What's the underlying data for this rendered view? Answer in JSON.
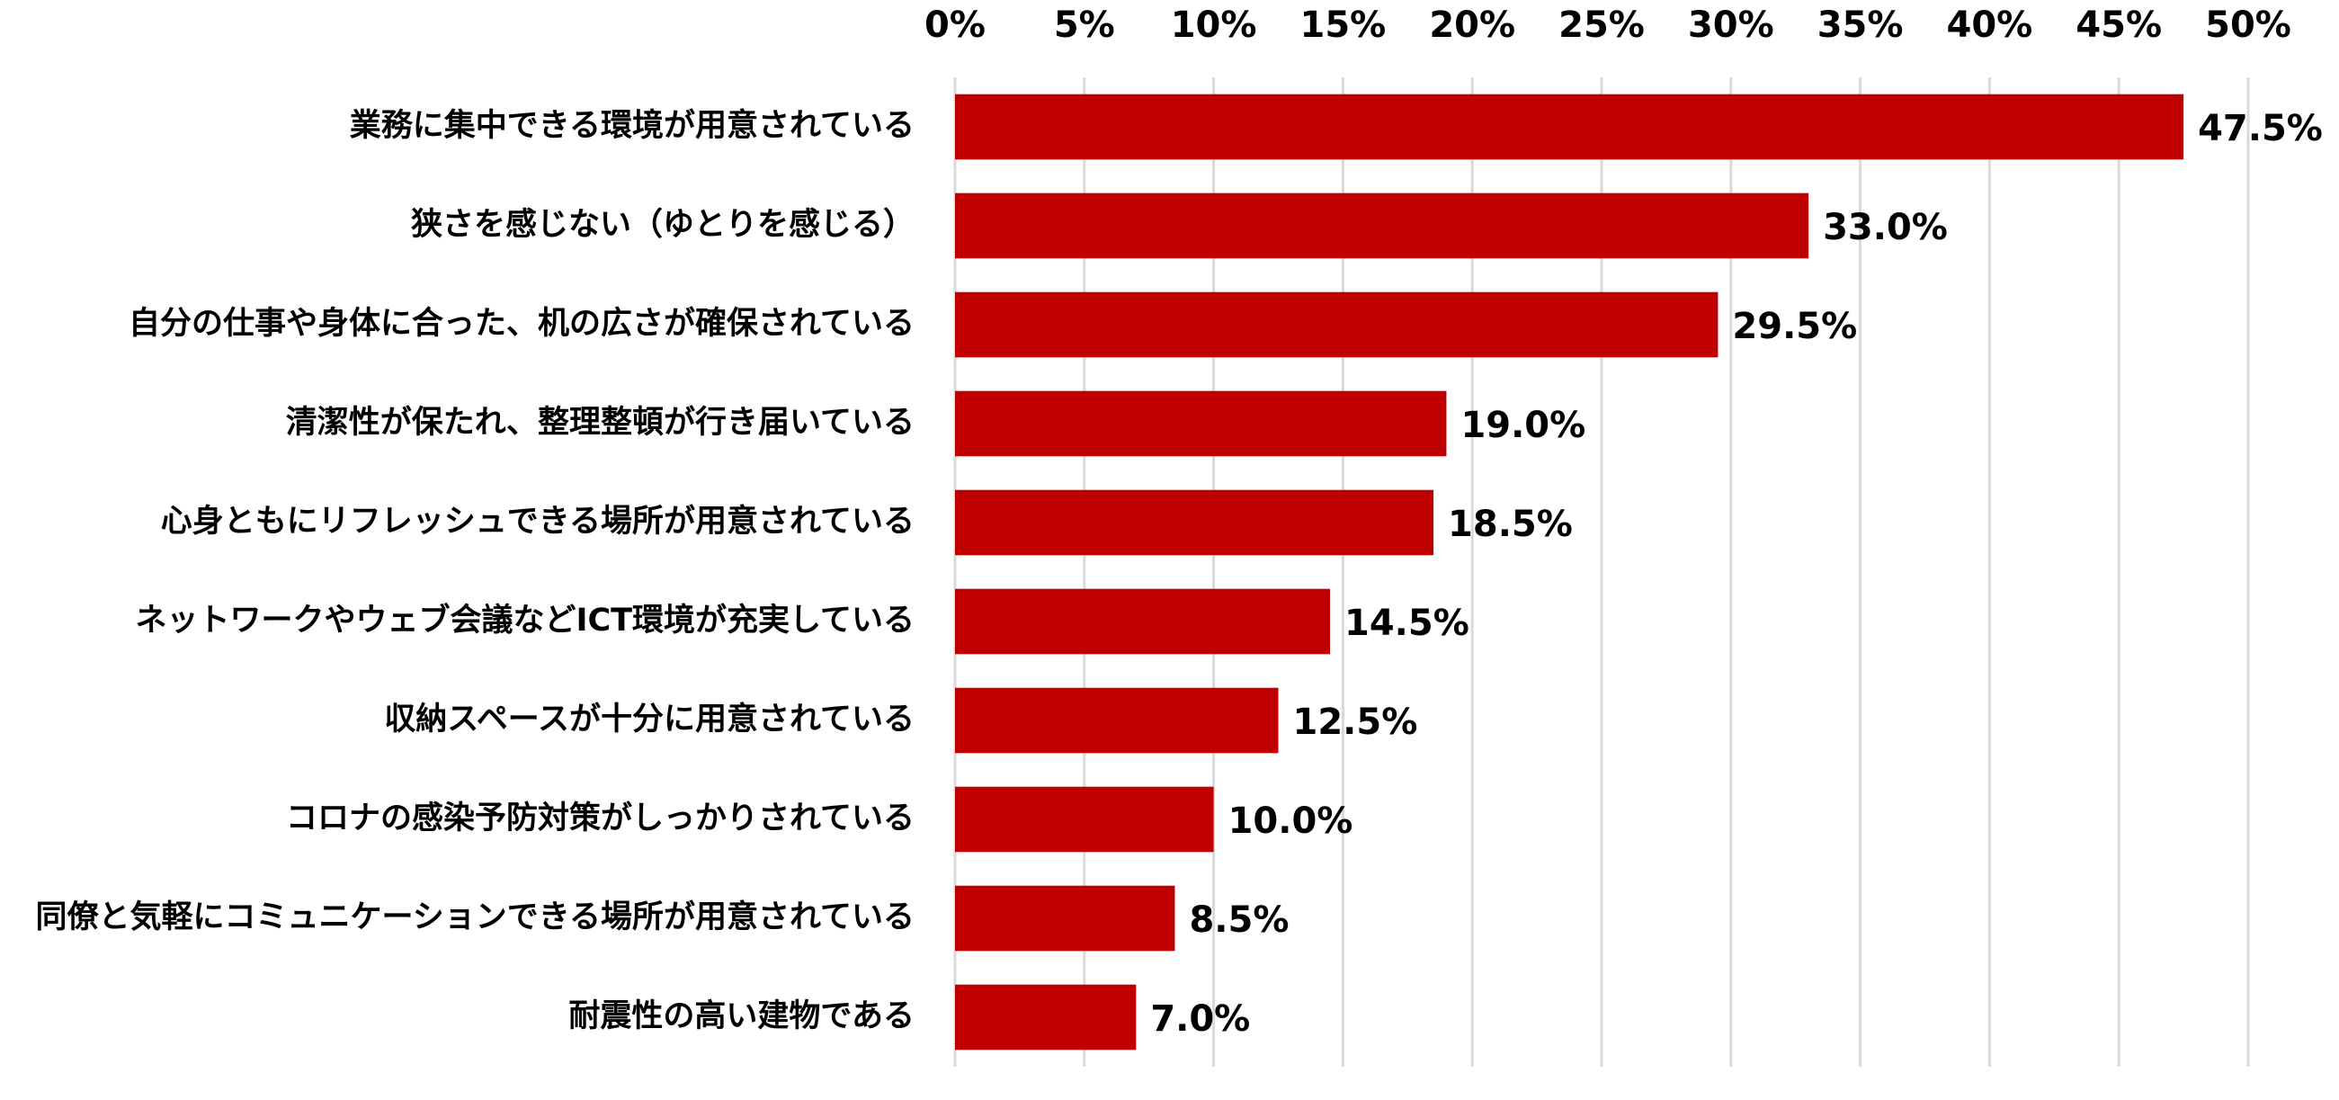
{
  "chart_data": {
    "type": "barh",
    "categories": [
      "業務に集中できる環境が用意されている",
      "狭さを感じない（ゆとりを感じる）",
      "自分の仕事や身体に合った、机の広さが確保されている",
      "清潔性が保たれ、整理整頓が行き届いている",
      "心身ともにリフレッシュできる場所が用意されている",
      "ネットワークやウェブ会議などICT環境が充実している",
      "収納スペースが十分に用意されている",
      "コロナの感染予防対策がしっかりされている",
      "同僚と気軽にコミュニケーションできる場所が用意されている",
      "耐震性の高い建物である"
    ],
    "values": [
      47.5,
      33.0,
      29.5,
      19.0,
      18.5,
      14.5,
      12.5,
      10.0,
      8.5,
      7.0
    ],
    "value_labels": [
      "47.5%",
      "33.0%",
      "29.5%",
      "19.0%",
      "18.5%",
      "14.5%",
      "12.5%",
      "10.0%",
      "8.5%",
      "7.0%"
    ],
    "color": "#c00000",
    "xlim": [
      0,
      50
    ],
    "xticks": [
      {
        "value": 0,
        "label": "0%"
      },
      {
        "value": 5,
        "label": "5%"
      },
      {
        "value": 10,
        "label": "10%"
      },
      {
        "value": 15,
        "label": "15%"
      },
      {
        "value": 20,
        "label": "20%"
      },
      {
        "value": 25,
        "label": "25%"
      },
      {
        "value": 30,
        "label": "30%"
      },
      {
        "value": 35,
        "label": "35%"
      },
      {
        "value": 40,
        "label": "40%"
      },
      {
        "value": 45,
        "label": "45%"
      },
      {
        "value": 50,
        "label": "50%"
      }
    ],
    "grid": true
  }
}
